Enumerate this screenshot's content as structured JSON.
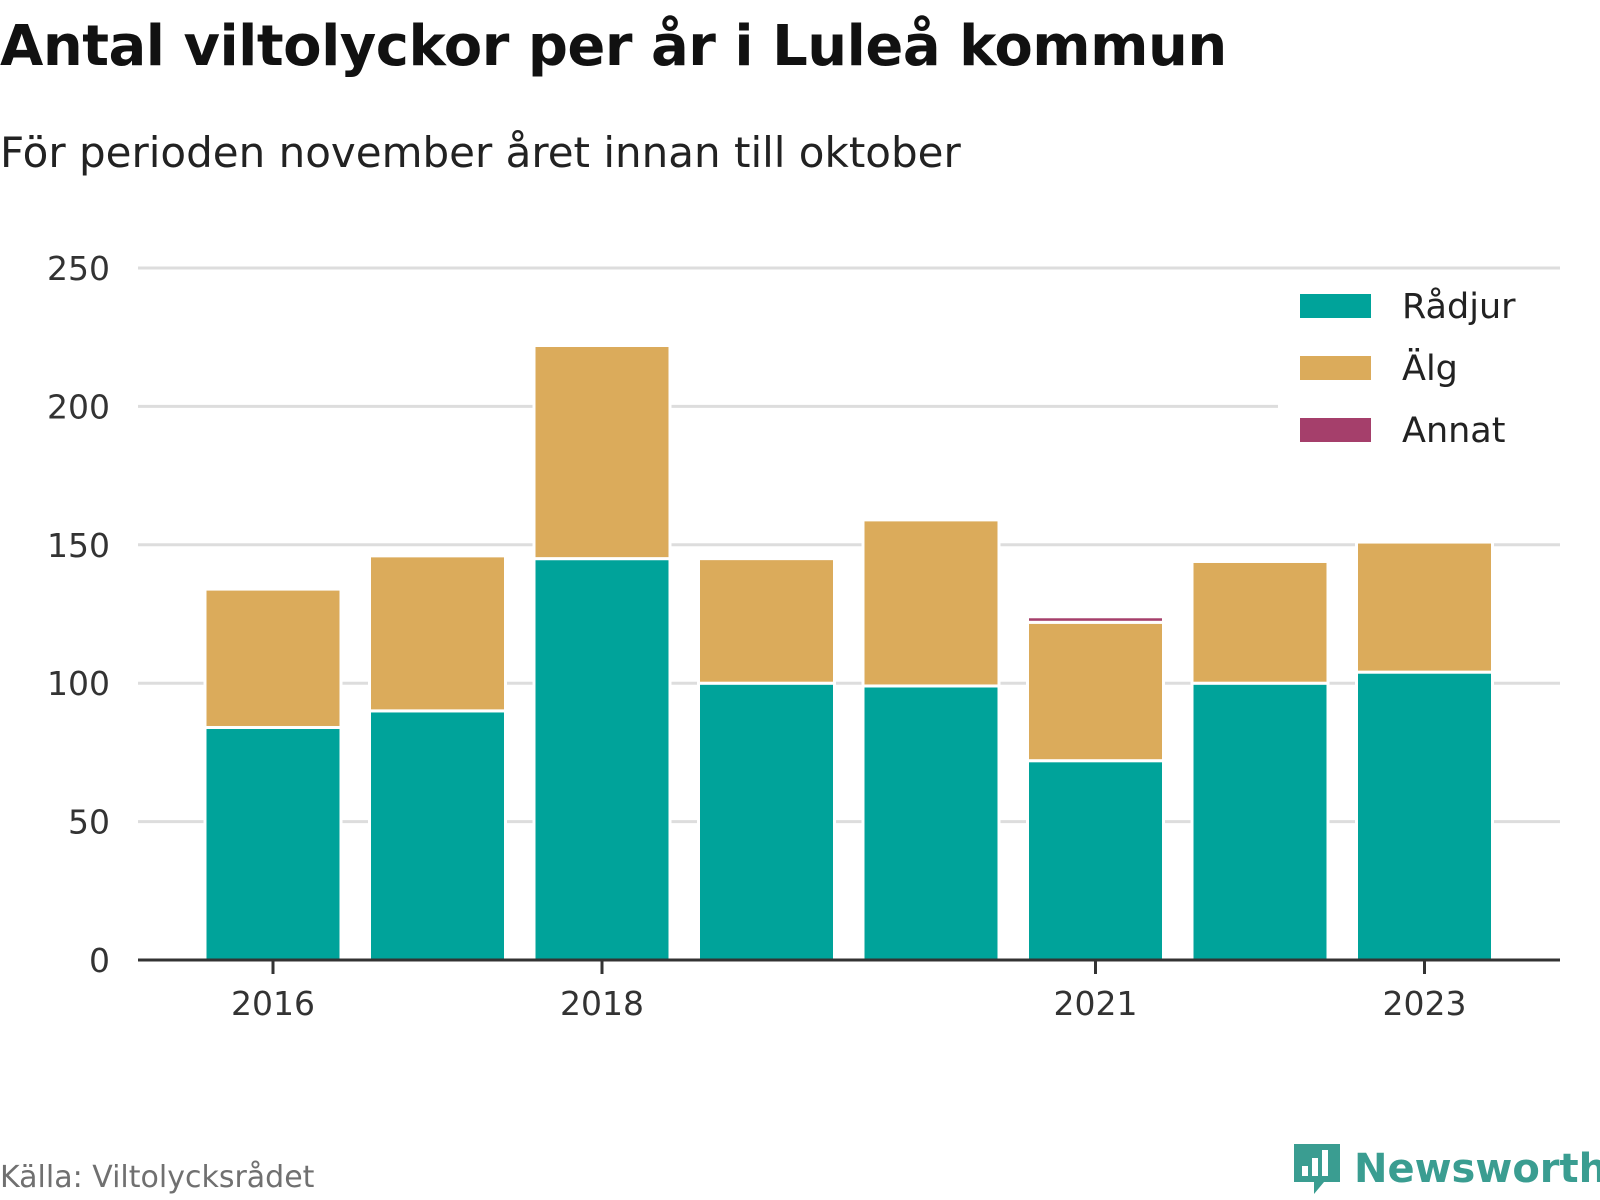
{
  "title": "Antal viltolyckor per år i Luleå kommun",
  "subtitle": "För perioden november året innan till oktober",
  "source": "Källa: Viltolycksrådet",
  "brand": "Newsworthy",
  "colors": {
    "radjur": "#00a39a",
    "alg": "#dbab5b",
    "annat": "#a53f6b",
    "grid": "#dddddd",
    "axis": "#333333",
    "text": "#333333"
  },
  "chart_data": {
    "type": "bar",
    "stacked": true,
    "categories": [
      "2016",
      "2017",
      "2018",
      "2019",
      "2020",
      "2021",
      "2022",
      "2023"
    ],
    "x_tick_labels": [
      "2016",
      "",
      "2018",
      "",
      "",
      "2021",
      "",
      "2023"
    ],
    "series": [
      {
        "name": "Rådjur",
        "color": "#00a39a",
        "values": [
          84,
          90,
          145,
          100,
          99,
          72,
          100,
          104
        ]
      },
      {
        "name": "Älg",
        "color": "#dbab5b",
        "values": [
          50,
          56,
          77,
          45,
          60,
          50,
          44,
          47
        ]
      },
      {
        "name": "Annat",
        "color": "#a53f6b",
        "values": [
          0,
          0,
          1,
          0,
          0,
          2,
          1,
          1
        ]
      }
    ],
    "ylim": [
      0,
      250
    ],
    "yticks": [
      0,
      50,
      100,
      150,
      200,
      250
    ],
    "xlabel": "",
    "ylabel": "",
    "grid": "horizontal",
    "legend_position": "top-right"
  }
}
